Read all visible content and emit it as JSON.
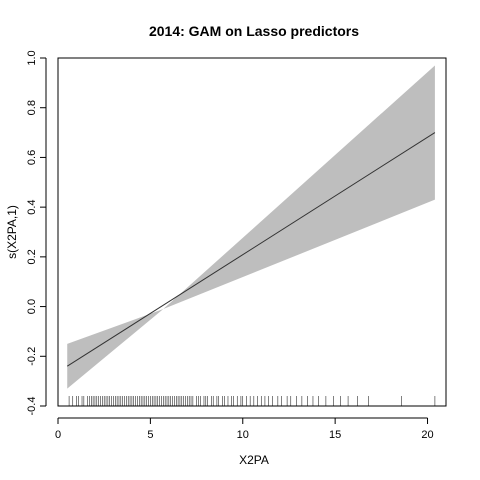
{
  "chart_data": {
    "type": "line",
    "title": "2014: GAM on Lasso predictors",
    "xlabel": "X2PA",
    "ylabel": "s(X2PA,1)",
    "xlim": [
      0,
      21
    ],
    "ylim": [
      -0.4,
      1.0
    ],
    "x_ticks": [
      0,
      5,
      10,
      15,
      20
    ],
    "y_ticks": [
      -0.4,
      -0.2,
      0.0,
      0.2,
      0.4,
      0.6,
      0.8,
      1.0
    ],
    "x_tick_labels": [
      "0",
      "5",
      "10",
      "15",
      "20"
    ],
    "y_tick_labels": [
      "-0.4",
      "-0.2",
      "0.0",
      "0.2",
      "0.4",
      "0.6",
      "0.8",
      "1.0"
    ],
    "series": [
      {
        "type": "line",
        "x": [
          0.5,
          20.4
        ],
        "values": [
          -0.24,
          0.7
        ]
      },
      {
        "type": "band",
        "x": [
          0.5,
          5.7,
          20.4
        ],
        "lower": [
          -0.33,
          -0.01,
          0.43
        ],
        "upper": [
          -0.15,
          -0.01,
          0.97
        ]
      }
    ],
    "rug_x": [
      0.6,
      0.8,
      1.0,
      1.1,
      1.3,
      1.4,
      1.6,
      1.7,
      1.8,
      1.9,
      2.0,
      2.1,
      2.2,
      2.3,
      2.4,
      2.5,
      2.6,
      2.7,
      2.8,
      2.9,
      3.0,
      3.1,
      3.2,
      3.3,
      3.4,
      3.5,
      3.6,
      3.7,
      3.8,
      3.9,
      4.0,
      4.1,
      4.2,
      4.3,
      4.4,
      4.5,
      4.6,
      4.7,
      4.8,
      4.9,
      5.0,
      5.1,
      5.2,
      5.3,
      5.4,
      5.5,
      5.6,
      5.7,
      5.8,
      5.9,
      6.0,
      6.1,
      6.2,
      6.3,
      6.4,
      6.5,
      6.6,
      6.7,
      6.8,
      6.9,
      7.0,
      7.1,
      7.2,
      7.3,
      7.5,
      7.6,
      7.7,
      7.9,
      8.0,
      8.1,
      8.3,
      8.4,
      8.6,
      8.7,
      8.9,
      9.0,
      9.2,
      9.4,
      9.5,
      9.7,
      9.9,
      10.0,
      10.2,
      10.4,
      10.6,
      10.8,
      11.0,
      11.2,
      11.4,
      11.6,
      11.9,
      12.1,
      12.4,
      12.6,
      12.9,
      13.2,
      13.5,
      13.8,
      14.1,
      14.5,
      14.9,
      15.3,
      15.7,
      16.2,
      16.8,
      18.6,
      20.4
    ],
    "grid": false,
    "colors": {
      "line": "#333333",
      "band": "#bebebe",
      "axis": "#000000",
      "rug": "#000000"
    }
  }
}
